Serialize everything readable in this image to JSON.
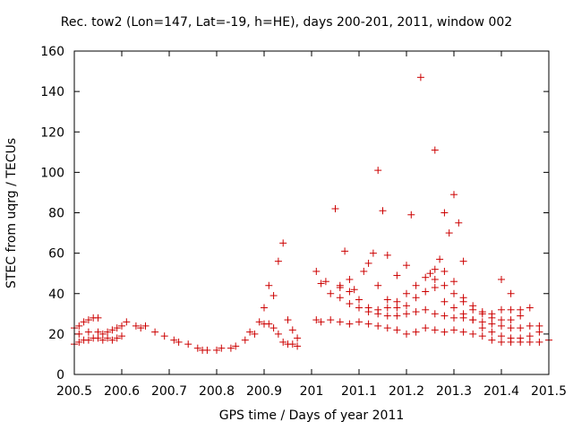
{
  "chart_data": {
    "type": "scatter",
    "title": "Rec. tow2 (Lon=147, Lat=-19, h=HE), days 200-201, 2011, window 002",
    "xlabel": "GPS time / Days of year 2011",
    "ylabel": "STEC from uqrg / TECUs",
    "xlim": [
      200.5,
      201.5
    ],
    "ylim": [
      0,
      160
    ],
    "xticks": [
      200.5,
      200.6,
      200.7,
      200.8,
      200.9,
      201,
      201.1,
      201.2,
      201.3,
      201.4,
      201.5
    ],
    "xtick_labels": [
      "200.5",
      "200.6",
      "200.7",
      "200.8",
      "200.9",
      "201",
      "201.1",
      "201.2",
      "201.3",
      "201.4",
      "201.5"
    ],
    "yticks": [
      0,
      20,
      40,
      60,
      80,
      100,
      120,
      140,
      160
    ],
    "ytick_labels": [
      "0",
      "20",
      "40",
      "60",
      "80",
      "100",
      "120",
      "140",
      "160"
    ],
    "marker": "+",
    "color": "#cc0000",
    "grid": false,
    "points": [
      [
        200.5,
        23
      ],
      [
        200.51,
        24
      ],
      [
        200.52,
        26
      ],
      [
        200.53,
        27
      ],
      [
        200.54,
        28
      ],
      [
        200.55,
        28
      ],
      [
        200.5,
        15
      ],
      [
        200.51,
        16
      ],
      [
        200.52,
        17
      ],
      [
        200.53,
        17
      ],
      [
        200.54,
        18
      ],
      [
        200.55,
        18
      ],
      [
        200.56,
        17
      ],
      [
        200.57,
        18
      ],
      [
        200.58,
        17
      ],
      [
        200.59,
        18
      ],
      [
        200.6,
        19
      ],
      [
        200.51,
        20
      ],
      [
        200.53,
        21
      ],
      [
        200.55,
        21
      ],
      [
        200.56,
        20
      ],
      [
        200.57,
        21
      ],
      [
        200.58,
        22
      ],
      [
        200.59,
        23
      ],
      [
        200.6,
        24
      ],
      [
        200.61,
        26
      ],
      [
        200.63,
        24
      ],
      [
        200.64,
        23
      ],
      [
        200.65,
        24
      ],
      [
        200.67,
        21
      ],
      [
        200.69,
        19
      ],
      [
        200.71,
        17
      ],
      [
        200.72,
        16
      ],
      [
        200.74,
        15
      ],
      [
        200.76,
        13
      ],
      [
        200.77,
        12
      ],
      [
        200.78,
        12
      ],
      [
        200.8,
        12
      ],
      [
        200.81,
        13
      ],
      [
        200.83,
        13
      ],
      [
        200.84,
        14
      ],
      [
        200.86,
        17
      ],
      [
        200.87,
        21
      ],
      [
        200.88,
        20
      ],
      [
        200.89,
        26
      ],
      [
        200.9,
        25
      ],
      [
        200.91,
        25
      ],
      [
        200.92,
        23
      ],
      [
        200.93,
        20
      ],
      [
        200.94,
        16
      ],
      [
        200.95,
        15
      ],
      [
        200.96,
        15
      ],
      [
        200.97,
        14
      ],
      [
        200.9,
        33
      ],
      [
        200.91,
        44
      ],
      [
        200.92,
        39
      ],
      [
        200.93,
        56
      ],
      [
        200.94,
        65
      ],
      [
        200.95,
        27
      ],
      [
        200.96,
        22
      ],
      [
        200.97,
        18
      ],
      [
        201.01,
        51
      ],
      [
        201.02,
        45
      ],
      [
        201.03,
        46
      ],
      [
        201.05,
        82
      ],
      [
        201.06,
        44
      ],
      [
        201.07,
        61
      ],
      [
        201.08,
        47
      ],
      [
        201.09,
        42
      ],
      [
        201.11,
        51
      ],
      [
        201.12,
        55
      ],
      [
        201.13,
        60
      ],
      [
        201.14,
        101
      ],
      [
        201.15,
        81
      ],
      [
        201.16,
        59
      ],
      [
        201.18,
        49
      ],
      [
        201.2,
        54
      ],
      [
        201.21,
        79
      ],
      [
        201.23,
        147
      ],
      [
        201.25,
        50
      ],
      [
        201.26,
        111
      ],
      [
        201.27,
        57
      ],
      [
        201.28,
        80
      ],
      [
        201.29,
        70
      ],
      [
        201.3,
        89
      ],
      [
        201.31,
        75
      ],
      [
        201.32,
        56
      ],
      [
        201.4,
        47
      ],
      [
        201.42,
        40
      ],
      [
        201.01,
        27
      ],
      [
        201.02,
        26
      ],
      [
        201.04,
        27
      ],
      [
        201.06,
        26
      ],
      [
        201.08,
        25
      ],
      [
        201.1,
        26
      ],
      [
        201.12,
        25
      ],
      [
        201.14,
        24
      ],
      [
        201.16,
        23
      ],
      [
        201.18,
        22
      ],
      [
        201.2,
        20
      ],
      [
        201.22,
        21
      ],
      [
        201.24,
        23
      ],
      [
        201.26,
        22
      ],
      [
        201.28,
        21
      ],
      [
        201.3,
        22
      ],
      [
        201.32,
        21
      ],
      [
        201.34,
        20
      ],
      [
        201.36,
        19
      ],
      [
        201.38,
        17
      ],
      [
        201.4,
        16
      ],
      [
        201.42,
        16
      ],
      [
        201.44,
        16
      ],
      [
        201.46,
        16
      ],
      [
        201.48,
        16
      ],
      [
        201.5,
        17
      ],
      [
        201.04,
        40
      ],
      [
        201.06,
        38
      ],
      [
        201.08,
        35
      ],
      [
        201.1,
        33
      ],
      [
        201.12,
        31
      ],
      [
        201.14,
        30
      ],
      [
        201.16,
        29
      ],
      [
        201.18,
        29
      ],
      [
        201.2,
        30
      ],
      [
        201.22,
        31
      ],
      [
        201.24,
        32
      ],
      [
        201.26,
        30
      ],
      [
        201.28,
        29
      ],
      [
        201.3,
        28
      ],
      [
        201.32,
        28
      ],
      [
        201.34,
        27
      ],
      [
        201.36,
        26
      ],
      [
        201.38,
        25
      ],
      [
        201.4,
        24
      ],
      [
        201.42,
        23
      ],
      [
        201.44,
        23
      ],
      [
        201.46,
        24
      ],
      [
        201.48,
        24
      ],
      [
        201.06,
        43
      ],
      [
        201.08,
        41
      ],
      [
        201.1,
        37
      ],
      [
        201.12,
        33
      ],
      [
        201.14,
        32
      ],
      [
        201.16,
        33
      ],
      [
        201.18,
        36
      ],
      [
        201.2,
        40
      ],
      [
        201.22,
        44
      ],
      [
        201.24,
        48
      ],
      [
        201.26,
        47
      ],
      [
        201.28,
        44
      ],
      [
        201.3,
        40
      ],
      [
        201.32,
        36
      ],
      [
        201.34,
        32
      ],
      [
        201.36,
        30
      ],
      [
        201.38,
        28
      ],
      [
        201.4,
        27
      ],
      [
        201.42,
        27
      ],
      [
        201.44,
        29
      ],
      [
        201.46,
        33
      ],
      [
        201.14,
        44
      ],
      [
        201.16,
        37
      ],
      [
        201.18,
        33
      ],
      [
        201.2,
        34
      ],
      [
        201.22,
        38
      ],
      [
        201.24,
        41
      ],
      [
        201.26,
        43
      ],
      [
        201.28,
        36
      ],
      [
        201.3,
        33
      ],
      [
        201.32,
        30
      ],
      [
        201.34,
        27
      ],
      [
        201.36,
        23
      ],
      [
        201.38,
        21
      ],
      [
        201.4,
        19
      ],
      [
        201.42,
        18
      ],
      [
        201.44,
        18
      ],
      [
        201.46,
        19
      ],
      [
        201.48,
        21
      ],
      [
        201.26,
        52
      ],
      [
        201.28,
        51
      ],
      [
        201.3,
        46
      ],
      [
        201.32,
        38
      ],
      [
        201.34,
        34
      ],
      [
        201.36,
        31
      ],
      [
        201.38,
        30
      ],
      [
        201.4,
        32
      ],
      [
        201.42,
        32
      ],
      [
        201.44,
        32
      ]
    ]
  }
}
